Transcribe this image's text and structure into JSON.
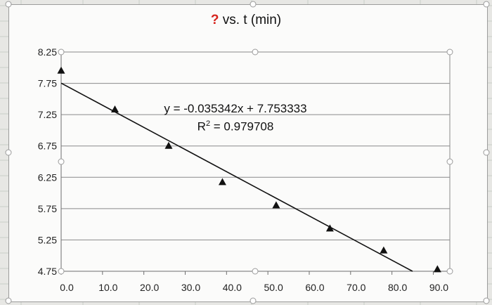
{
  "chart_data": {
    "type": "scatter",
    "title": {
      "highlight": "?",
      "rest": " vs. t (min)",
      "highlight_color": "#d6231c"
    },
    "x_ticks": [
      "0.0",
      "10.0",
      "20.0",
      "30.0",
      "40.0",
      "50.0",
      "60.0",
      "70.0",
      "80.0",
      "90.0"
    ],
    "y_ticks": [
      "4.75",
      "5.25",
      "5.75",
      "6.25",
      "6.75",
      "7.25",
      "7.75",
      "8.25"
    ],
    "xlim": [
      0,
      94
    ],
    "ylim": [
      4.75,
      8.25
    ],
    "grid": "horizontal",
    "legend": "none",
    "marker": "triangle",
    "marker_color": "#111111",
    "points": [
      {
        "x": 0,
        "y": 7.95
      },
      {
        "x": 13,
        "y": 7.33
      },
      {
        "x": 26,
        "y": 6.75
      },
      {
        "x": 39,
        "y": 6.17
      },
      {
        "x": 52,
        "y": 5.8
      },
      {
        "x": 65,
        "y": 5.43
      },
      {
        "x": 78,
        "y": 5.08
      },
      {
        "x": 91,
        "y": 4.78
      }
    ],
    "trendline": {
      "slope": -0.035342,
      "intercept": 7.753333,
      "equation": "y = -0.035342x + 7.753333",
      "r2_prefix": "R",
      "r2_sup": "2",
      "r2_value": " = 0.979708"
    }
  }
}
